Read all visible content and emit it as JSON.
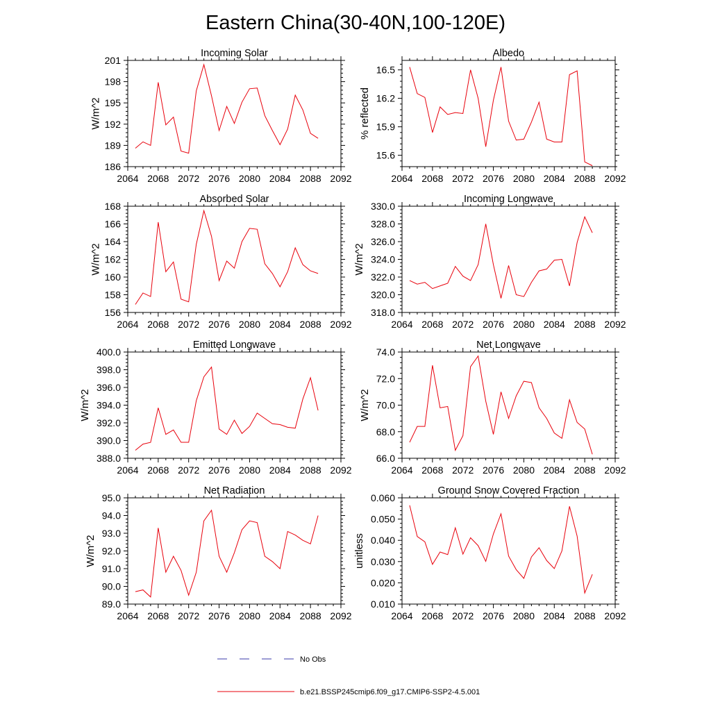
{
  "figure": {
    "title": "Eastern China(30-40N,100-120E)"
  },
  "legend": {
    "entries": [
      {
        "label": "No Obs",
        "color": "#3a3aaa",
        "dash": true
      },
      {
        "label": "b.e21.BSSP245cmip6.f09_g17.CMIP6-SSP2-4.5.001",
        "color": "#e8000b",
        "dash": false
      }
    ]
  },
  "chart_data": [
    {
      "type": "line",
      "title": "Incoming Solar",
      "ylabel": "W/m^2",
      "xlim": [
        2064,
        2092
      ],
      "xticks": [
        "2064",
        "2068",
        "2072",
        "2076",
        "2080",
        "2084",
        "2088",
        "2092"
      ],
      "ylim": [
        186,
        201
      ],
      "yticks": [
        "186",
        "189",
        "192",
        "195",
        "198",
        "201"
      ],
      "series": [
        {
          "color": "#e8000b",
          "x": [
            2065,
            2066,
            2067,
            2068,
            2069,
            2070,
            2071,
            2072,
            2073,
            2074,
            2075,
            2076,
            2077,
            2078,
            2079,
            2080,
            2081,
            2082,
            2083,
            2084,
            2085,
            2086,
            2087,
            2088,
            2089
          ],
          "y": [
            188.6,
            189.5,
            189.0,
            197.9,
            191.9,
            193.0,
            188.2,
            187.9,
            196.7,
            200.4,
            196.0,
            191.1,
            194.5,
            192.1,
            195.1,
            197.0,
            197.1,
            193.2,
            191.1,
            189.1,
            191.3,
            196.1,
            194.0,
            190.7,
            190.0
          ]
        }
      ]
    },
    {
      "type": "line",
      "title": "Albedo",
      "ylabel": "% reflected",
      "xlim": [
        2064,
        2092
      ],
      "xticks": [
        "2064",
        "2068",
        "2072",
        "2076",
        "2080",
        "2084",
        "2088",
        "2092"
      ],
      "ylim": [
        15.48,
        16.6
      ],
      "yticks": [
        "15.6",
        "15.9",
        "16.2",
        "16.5"
      ],
      "series": [
        {
          "color": "#e8000b",
          "x": [
            2065,
            2066,
            2067,
            2068,
            2069,
            2070,
            2071,
            2072,
            2073,
            2074,
            2075,
            2076,
            2077,
            2078,
            2079,
            2080,
            2081,
            2082,
            2083,
            2084,
            2085,
            2086,
            2087,
            2088,
            2089
          ],
          "y": [
            16.53,
            16.25,
            16.21,
            15.84,
            16.11,
            16.03,
            16.05,
            16.04,
            16.5,
            16.2,
            15.69,
            16.18,
            16.53,
            15.96,
            15.76,
            15.77,
            15.95,
            16.16,
            15.77,
            15.74,
            15.74,
            16.45,
            16.49,
            15.53,
            15.49
          ]
        }
      ]
    },
    {
      "type": "line",
      "title": "Absorbed Solar",
      "ylabel": "W/m^2",
      "xlim": [
        2064,
        2092
      ],
      "xticks": [
        "2064",
        "2068",
        "2072",
        "2076",
        "2080",
        "2084",
        "2088",
        "2092"
      ],
      "ylim": [
        156,
        168
      ],
      "yticks": [
        "156",
        "158",
        "160",
        "162",
        "164",
        "166",
        "168"
      ],
      "series": [
        {
          "color": "#e8000b",
          "x": [
            2065,
            2066,
            2067,
            2068,
            2069,
            2070,
            2071,
            2072,
            2073,
            2074,
            2075,
            2076,
            2077,
            2078,
            2079,
            2080,
            2081,
            2082,
            2083,
            2084,
            2085,
            2086,
            2087,
            2088,
            2089
          ],
          "y": [
            156.9,
            158.2,
            157.8,
            166.2,
            160.6,
            161.7,
            157.5,
            157.2,
            163.7,
            167.5,
            164.6,
            159.6,
            161.8,
            161.0,
            164.0,
            165.5,
            165.4,
            161.5,
            160.4,
            158.9,
            160.6,
            163.3,
            161.4,
            160.7,
            160.4
          ]
        }
      ]
    },
    {
      "type": "line",
      "title": "Incoming Longwave",
      "ylabel": "W/m^2",
      "xlim": [
        2064,
        2092
      ],
      "xticks": [
        "2064",
        "2068",
        "2072",
        "2076",
        "2080",
        "2084",
        "2088",
        "2092"
      ],
      "ylim": [
        318,
        330
      ],
      "yticks": [
        "318.0",
        "320.0",
        "322.0",
        "324.0",
        "326.0",
        "328.0",
        "330.0"
      ],
      "series": [
        {
          "color": "#e8000b",
          "x": [
            2065,
            2066,
            2067,
            2068,
            2069,
            2070,
            2071,
            2072,
            2073,
            2074,
            2075,
            2076,
            2077,
            2078,
            2079,
            2080,
            2081,
            2082,
            2083,
            2084,
            2085,
            2086,
            2087,
            2088,
            2089
          ],
          "y": [
            321.6,
            321.2,
            321.4,
            320.7,
            321.0,
            321.3,
            323.2,
            322.1,
            321.6,
            323.4,
            328.0,
            323.4,
            319.6,
            323.3,
            320.0,
            319.8,
            321.4,
            322.7,
            322.9,
            323.9,
            324.0,
            321.0,
            325.9,
            328.8,
            327.0
          ]
        }
      ]
    },
    {
      "type": "line",
      "title": "Emitted Longwave",
      "ylabel": "W/m^2",
      "xlim": [
        2064,
        2092
      ],
      "xticks": [
        "2064",
        "2068",
        "2072",
        "2076",
        "2080",
        "2084",
        "2088",
        "2092"
      ],
      "ylim": [
        388,
        400
      ],
      "yticks": [
        "388.0",
        "390.0",
        "392.0",
        "394.0",
        "396.0",
        "398.0",
        "400.0"
      ],
      "series": [
        {
          "color": "#e8000b",
          "x": [
            2065,
            2066,
            2067,
            2068,
            2069,
            2070,
            2071,
            2072,
            2073,
            2074,
            2075,
            2076,
            2077,
            2078,
            2079,
            2080,
            2081,
            2082,
            2083,
            2084,
            2085,
            2086,
            2087,
            2088,
            2089
          ],
          "y": [
            388.9,
            389.6,
            389.8,
            393.7,
            390.7,
            391.2,
            389.8,
            389.8,
            394.5,
            397.2,
            398.3,
            391.3,
            390.7,
            392.3,
            390.8,
            391.6,
            393.1,
            392.5,
            391.9,
            391.8,
            391.5,
            391.4,
            394.7,
            397.1,
            393.4
          ]
        }
      ]
    },
    {
      "type": "line",
      "title": "Net Longwave",
      "ylabel": "W/m^2",
      "xlim": [
        2064,
        2092
      ],
      "xticks": [
        "2064",
        "2068",
        "2072",
        "2076",
        "2080",
        "2084",
        "2088",
        "2092"
      ],
      "ylim": [
        66,
        74
      ],
      "yticks": [
        "66.0",
        "68.0",
        "70.0",
        "72.0",
        "74.0"
      ],
      "series": [
        {
          "color": "#e8000b",
          "x": [
            2065,
            2066,
            2067,
            2068,
            2069,
            2070,
            2071,
            2072,
            2073,
            2074,
            2075,
            2076,
            2077,
            2078,
            2079,
            2080,
            2081,
            2082,
            2083,
            2084,
            2085,
            2086,
            2087,
            2088,
            2089
          ],
          "y": [
            67.2,
            68.4,
            68.4,
            73.0,
            69.8,
            69.9,
            66.6,
            67.7,
            72.9,
            73.7,
            70.3,
            67.8,
            71.0,
            69.0,
            70.7,
            71.8,
            71.7,
            69.8,
            69.0,
            67.9,
            67.5,
            70.4,
            68.7,
            68.2,
            66.3
          ]
        }
      ]
    },
    {
      "type": "line",
      "title": "Net Radiation",
      "ylabel": "W/m^2",
      "xlim": [
        2064,
        2092
      ],
      "xticks": [
        "2064",
        "2068",
        "2072",
        "2076",
        "2080",
        "2084",
        "2088",
        "2092"
      ],
      "ylim": [
        89,
        95
      ],
      "yticks": [
        "89.0",
        "90.0",
        "91.0",
        "92.0",
        "93.0",
        "94.0",
        "95.0"
      ],
      "series": [
        {
          "color": "#e8000b",
          "x": [
            2065,
            2066,
            2067,
            2068,
            2069,
            2070,
            2071,
            2072,
            2073,
            2074,
            2075,
            2076,
            2077,
            2078,
            2079,
            2080,
            2081,
            2082,
            2083,
            2084,
            2085,
            2086,
            2087,
            2088,
            2089
          ],
          "y": [
            89.7,
            89.8,
            89.4,
            93.3,
            90.8,
            91.7,
            90.9,
            89.5,
            90.8,
            93.7,
            94.3,
            91.7,
            90.8,
            91.9,
            93.2,
            93.7,
            93.6,
            91.7,
            91.4,
            91.0,
            93.1,
            92.9,
            92.6,
            92.4,
            94.0
          ]
        }
      ]
    },
    {
      "type": "line",
      "title": "Ground Snow Covered Fraction",
      "ylabel": "unitless",
      "xlim": [
        2064,
        2092
      ],
      "xticks": [
        "2064",
        "2068",
        "2072",
        "2076",
        "2080",
        "2084",
        "2088",
        "2092"
      ],
      "ylim": [
        0.01,
        0.06
      ],
      "yticks": [
        "0.010",
        "0.020",
        "0.030",
        "0.040",
        "0.050",
        "0.060"
      ],
      "series": [
        {
          "color": "#e8000b",
          "x": [
            2065,
            2066,
            2067,
            2068,
            2069,
            2070,
            2071,
            2072,
            2073,
            2074,
            2075,
            2076,
            2077,
            2078,
            2079,
            2080,
            2081,
            2082,
            2083,
            2084,
            2085,
            2086,
            2087,
            2088,
            2089
          ],
          "y": [
            0.0565,
            0.0418,
            0.0393,
            0.0287,
            0.0345,
            0.0333,
            0.0459,
            0.0335,
            0.0412,
            0.0375,
            0.0301,
            0.043,
            0.0525,
            0.0326,
            0.0262,
            0.0221,
            0.0322,
            0.0365,
            0.0305,
            0.0267,
            0.035,
            0.056,
            0.042,
            0.0152,
            0.024
          ]
        }
      ]
    }
  ]
}
